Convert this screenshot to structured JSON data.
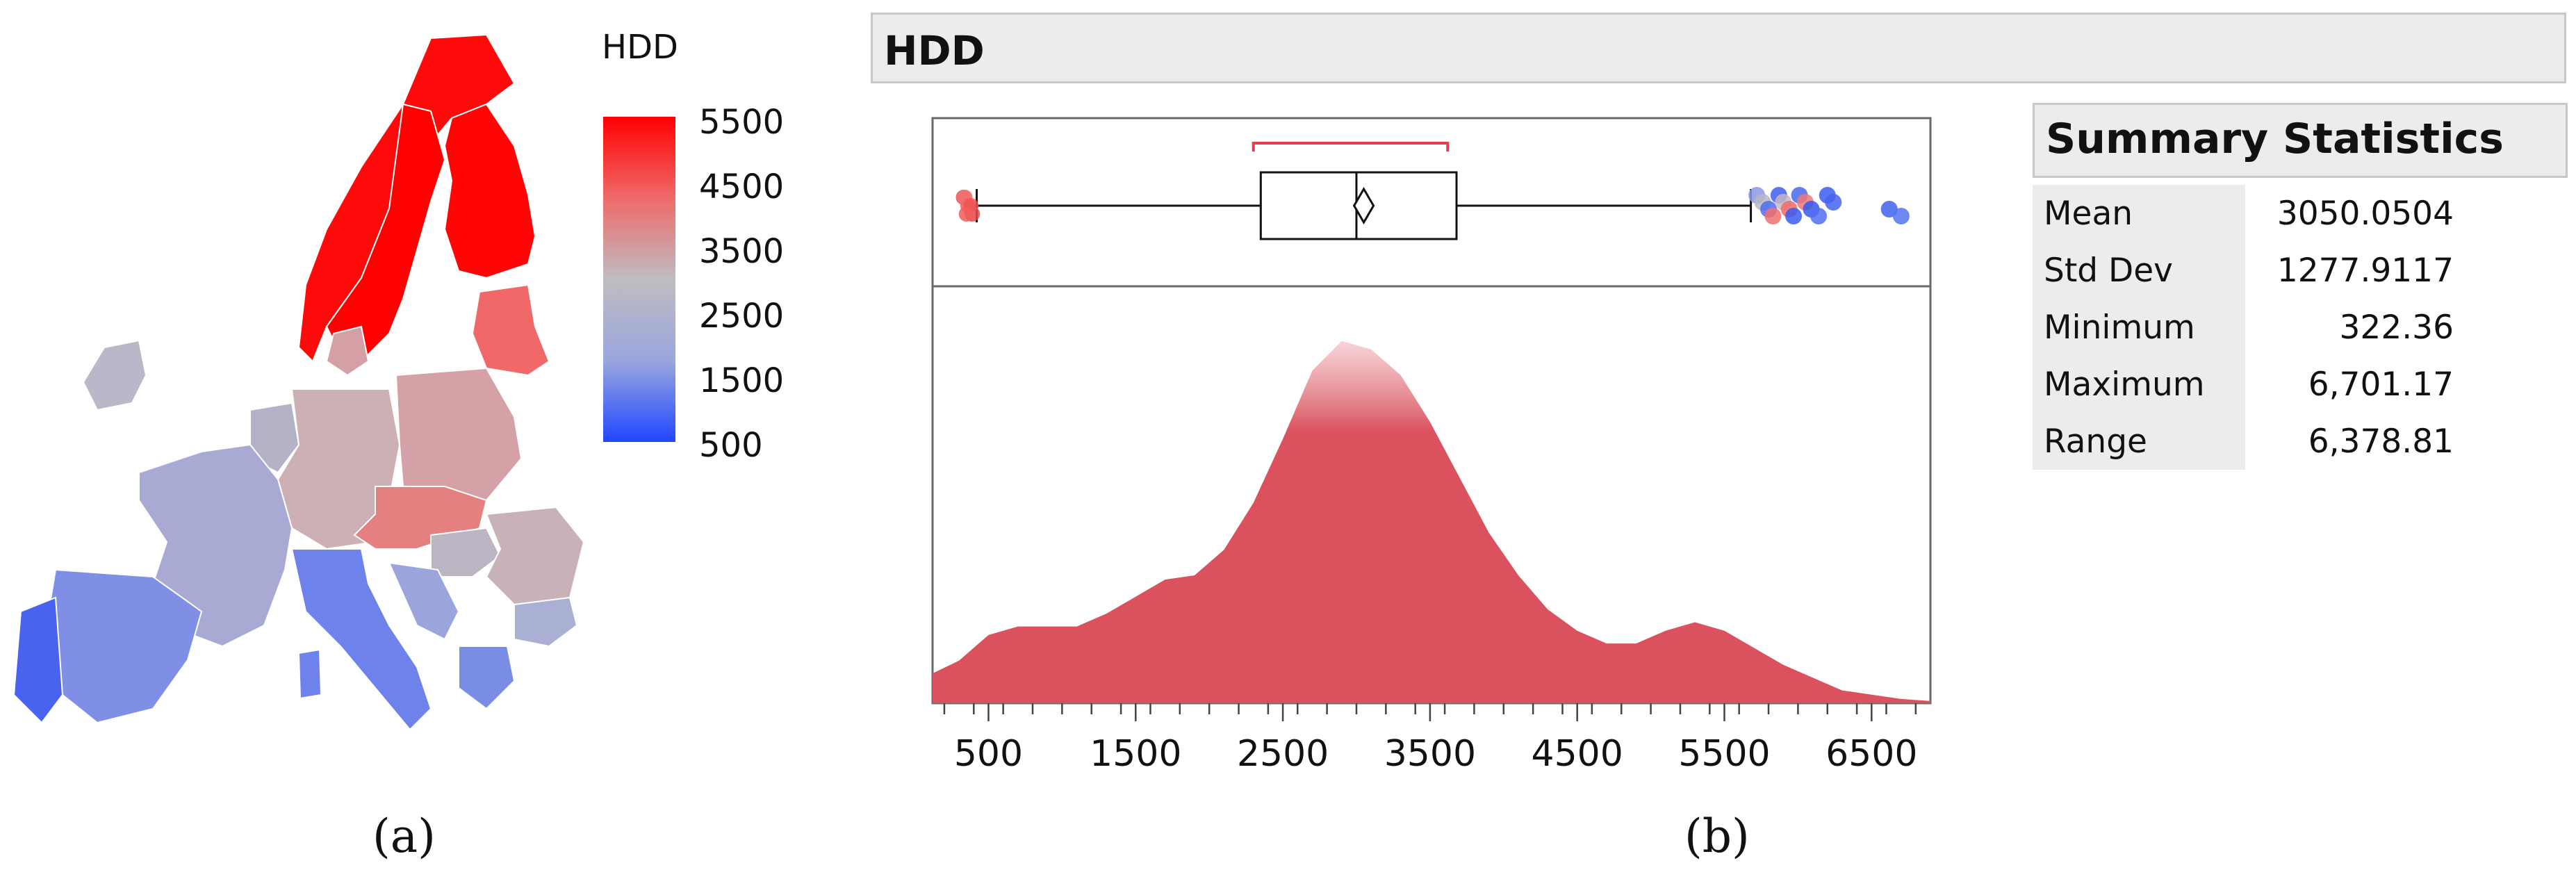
{
  "map_panel": {
    "legend_title": "HDD",
    "legend_ticks": [
      "5500",
      "4500",
      "3500",
      "2500",
      "1500",
      "500"
    ],
    "colors": {
      "high": "#ff0000",
      "mid": "#c0bcc0",
      "low": "#1f47ff"
    },
    "caption": "(a)"
  },
  "dist_panel": {
    "header": "HDD",
    "caption": "(b)",
    "fill_color": "#d9525e",
    "bracket_color": "#e0404e"
  },
  "stats": {
    "title": "Summary Statistics",
    "rows": [
      {
        "label": "Mean",
        "value": "3050.0504"
      },
      {
        "label": "Std Dev",
        "value": "1277.9117"
      },
      {
        "label": "Minimum",
        "value": "322.36"
      },
      {
        "label": "Maximum",
        "value": "6,701.17"
      },
      {
        "label": "Range",
        "value": "6,378.81"
      }
    ]
  },
  "chart_data": [
    {
      "type": "area",
      "title": "HDD",
      "xlabel": "",
      "ylabel": "",
      "xlim": [
        120,
        6900
      ],
      "x_ticks": [
        500,
        1500,
        2500,
        3500,
        4500,
        5500,
        6500
      ],
      "grid": false,
      "density": {
        "x": [
          120,
          300,
          500,
          700,
          900,
          1100,
          1300,
          1500,
          1700,
          1900,
          2100,
          2300,
          2500,
          2700,
          2900,
          3100,
          3300,
          3500,
          3700,
          3900,
          4100,
          4300,
          4500,
          4700,
          4900,
          5100,
          5300,
          5500,
          5700,
          5900,
          6100,
          6300,
          6500,
          6700,
          6900
        ],
        "y": [
          0.07,
          0.1,
          0.16,
          0.18,
          0.18,
          0.18,
          0.21,
          0.25,
          0.29,
          0.3,
          0.36,
          0.47,
          0.62,
          0.78,
          0.85,
          0.83,
          0.77,
          0.66,
          0.53,
          0.4,
          0.3,
          0.22,
          0.17,
          0.14,
          0.14,
          0.17,
          0.19,
          0.17,
          0.13,
          0.09,
          0.06,
          0.03,
          0.02,
          0.01,
          0.005
        ]
      },
      "boxplot": {
        "q1": 2350,
        "median": 3000,
        "q3": 3680,
        "mean": 3050,
        "whisker_low": 420,
        "whisker_high": 5680,
        "bracket": [
          2300,
          3620
        ]
      },
      "outliers_low": [
        {
          "x": 330,
          "c": "#ee5050"
        },
        {
          "x": 360,
          "c": "#f06060"
        },
        {
          "x": 390,
          "c": "#e84848"
        },
        {
          "x": 340,
          "c": "#f07070"
        },
        {
          "x": 380,
          "c": "#ec5454"
        },
        {
          "x": 350,
          "c": "#f25c5c"
        }
      ],
      "outliers_high": [
        {
          "x": 5720,
          "c": "#8a9ae8"
        },
        {
          "x": 5760,
          "c": "#b9b6c6"
        },
        {
          "x": 5800,
          "c": "#4d6cee"
        },
        {
          "x": 5830,
          "c": "#f07070"
        },
        {
          "x": 5870,
          "c": "#3f5ef0"
        },
        {
          "x": 5900,
          "c": "#c9b8c2"
        },
        {
          "x": 5940,
          "c": "#f06a6a"
        },
        {
          "x": 5970,
          "c": "#3a5cf2"
        },
        {
          "x": 6010,
          "c": "#4866f0"
        },
        {
          "x": 6050,
          "c": "#f07878"
        },
        {
          "x": 6090,
          "c": "#3558f0"
        },
        {
          "x": 6140,
          "c": "#5070ee"
        },
        {
          "x": 6200,
          "c": "#3a5cf2"
        },
        {
          "x": 6240,
          "c": "#4664f0"
        },
        {
          "x": 6620,
          "c": "#3f62f0"
        },
        {
          "x": 6701,
          "c": "#5474ee"
        }
      ]
    }
  ]
}
